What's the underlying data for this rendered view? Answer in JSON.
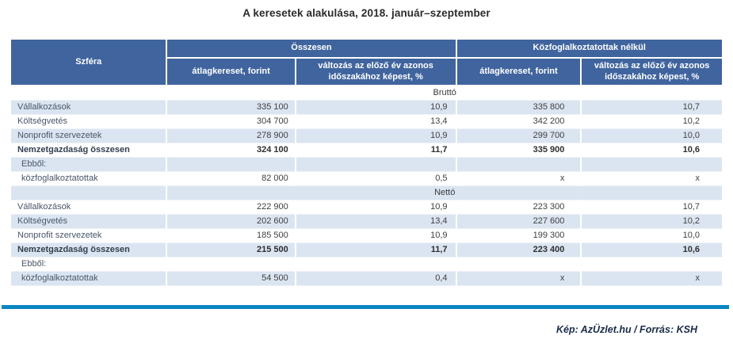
{
  "title": "A keresetek alakulása, 2018. január–szeptember",
  "colors": {
    "header_bg": "#40649E",
    "row_alt_bg": "#DBE5F1",
    "rule_line": "#0A86C2",
    "credit_text": "#1A2B49"
  },
  "chart_data": {
    "type": "table",
    "title": "A keresetek alakulása, 2018. január–szeptember",
    "header": {
      "sphere_col": "Szféra",
      "groups": [
        {
          "label": "Összesen",
          "subcolumns": [
            "átlagkereset, forint",
            "változás az előző év azonos időszakához képest, %"
          ]
        },
        {
          "label": "Közfoglalkoztatottak nélkül",
          "subcolumns": [
            "átlagkereset, forint",
            "változás az előző év azonos időszakához képest, %"
          ]
        }
      ]
    },
    "sections": [
      {
        "label": "Bruttó",
        "rows": [
          {
            "label": "Vállalkozások",
            "values": [
              "335 100",
              "10,9",
              "335 800",
              "10,7"
            ],
            "bold": false,
            "indent": false
          },
          {
            "label": "Költségvetés",
            "values": [
              "304 700",
              "13,4",
              "342 200",
              "10,2"
            ],
            "bold": false,
            "indent": false
          },
          {
            "label": "Nonprofit szervezetek",
            "values": [
              "278 900",
              "10,9",
              "299 700",
              "10,0"
            ],
            "bold": false,
            "indent": false
          },
          {
            "label": "Nemzetgazdaság összesen",
            "values": [
              "324 100",
              "11,7",
              "335 900",
              "10,6"
            ],
            "bold": true,
            "indent": false
          },
          {
            "label": "Ebből:",
            "values": [
              "",
              "",
              "",
              ""
            ],
            "bold": false,
            "indent": true
          },
          {
            "label": "közfoglalkoztatottak",
            "values": [
              "82 000",
              "0,5",
              "x",
              "x"
            ],
            "bold": false,
            "indent": true
          }
        ]
      },
      {
        "label": "Nettó",
        "rows": [
          {
            "label": "Vállalkozások",
            "values": [
              "222 900",
              "10,9",
              "223 300",
              "10,7"
            ],
            "bold": false,
            "indent": false
          },
          {
            "label": "Költségvetés",
            "values": [
              "202 600",
              "13,4",
              "227 600",
              "10,2"
            ],
            "bold": false,
            "indent": false
          },
          {
            "label": "Nonprofit szervezetek",
            "values": [
              "185 500",
              "10,9",
              "199 300",
              "10,0"
            ],
            "bold": false,
            "indent": false
          },
          {
            "label": "Nemzetgazdaság összesen",
            "values": [
              "215 500",
              "11,7",
              "223 400",
              "10,6"
            ],
            "bold": true,
            "indent": false
          },
          {
            "label": "Ebből:",
            "values": [
              "",
              "",
              "",
              ""
            ],
            "bold": false,
            "indent": true
          },
          {
            "label": "közfoglalkoztatottak",
            "values": [
              "54 500",
              "0,4",
              "x",
              "x"
            ],
            "bold": false,
            "indent": true
          }
        ]
      }
    ]
  },
  "footer": {
    "credit": "Kép: AzÜzlet.hu / Forrás: KSH"
  }
}
